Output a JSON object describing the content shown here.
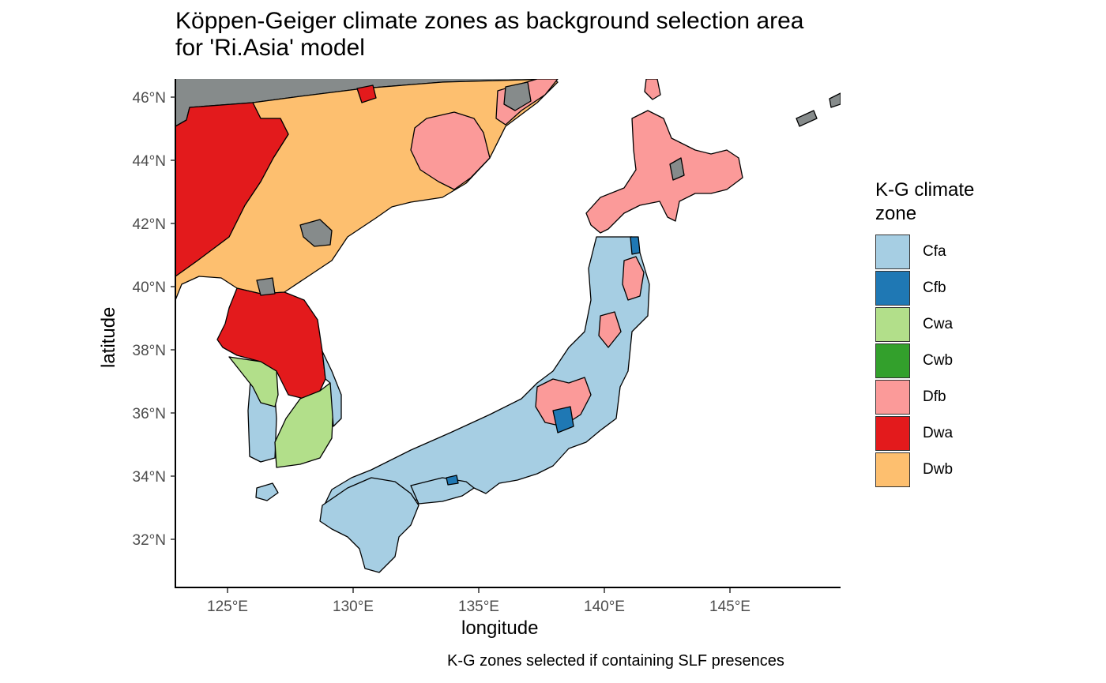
{
  "title": {
    "line1": "Köppen-Geiger climate zones as background selection area",
    "line2": "for 'Ri.Asia' model"
  },
  "axes": {
    "x_title": "longitude",
    "y_title": "latitude",
    "x_ticks": [
      "125°E",
      "130°E",
      "135°E",
      "140°E",
      "145°E"
    ],
    "y_ticks": [
      "46°N",
      "44°N",
      "42°N",
      "40°N",
      "38°N",
      "36°N",
      "34°N",
      "32°N"
    ],
    "x_range": [
      122.9,
      149.3
    ],
    "y_range": [
      30.5,
      46.6
    ]
  },
  "legend": {
    "title_line1": "K-G climate",
    "title_line2": "zone",
    "items": [
      {
        "label": "Cfa",
        "color": "#a6cee3"
      },
      {
        "label": "Cfb",
        "color": "#1f78b4"
      },
      {
        "label": "Cwa",
        "color": "#b2df8a"
      },
      {
        "label": "Cwb",
        "color": "#33a02c"
      },
      {
        "label": "Dfb",
        "color": "#fb9a99"
      },
      {
        "label": "Dwa",
        "color": "#e31a1c"
      },
      {
        "label": "Dwb",
        "color": "#fdbf6f"
      }
    ]
  },
  "caption": "K-G zones selected if containing SLF presences",
  "colors": {
    "unselected_zone": "#868b8b",
    "outline": "#000000"
  }
}
